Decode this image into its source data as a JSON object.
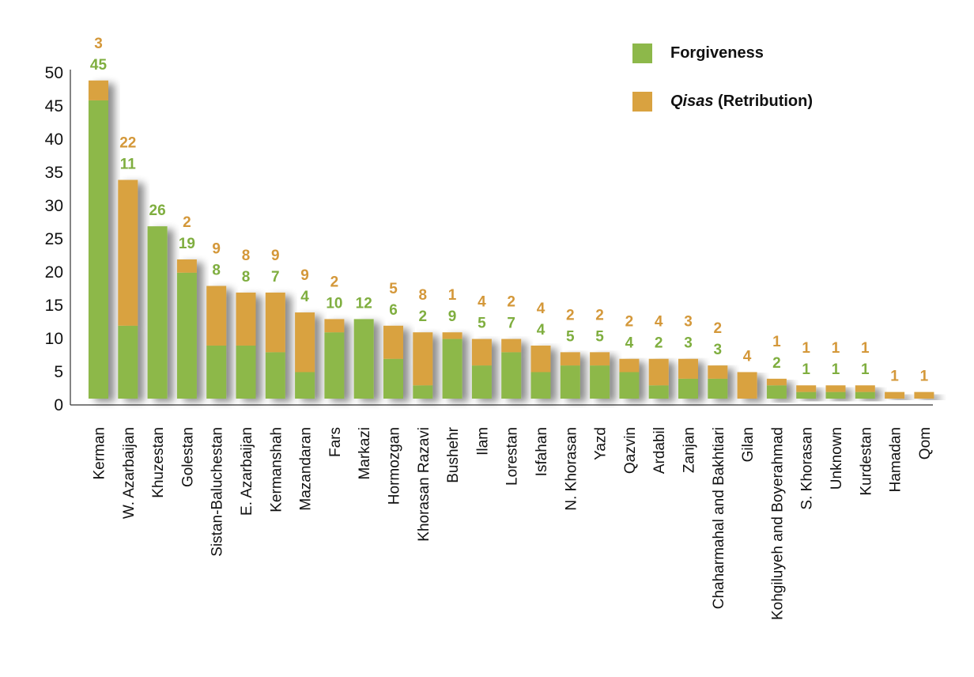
{
  "chart_data": {
    "type": "bar",
    "stacked": true,
    "categories": [
      "Kerman",
      "W. Azarbaijan",
      "Khuzestan",
      "Golestan",
      "Sistan-Baluchestan",
      "E. Azarbaijan",
      "Kermanshah",
      "Mazandaran",
      "Fars",
      "Markazi",
      "Hormozgan",
      "Khorasan Razavi",
      "Bushehr",
      "Ilam",
      "Lorestan",
      "Isfahan",
      "N. Khorasan",
      "Yazd",
      "Qazvin",
      "Ardabil",
      "Zanjan",
      "Chaharmahal and Bakhtiari",
      "Gilan",
      "Kohgiluyeh and Boyerahmad",
      "S. Khorasan",
      "Unknown",
      "Kurdestan",
      "Hamadan",
      "Qom"
    ],
    "series": [
      {
        "name": "Forgiveness",
        "color": "#8db84a",
        "values": [
          45,
          11,
          26,
          19,
          8,
          8,
          7,
          4,
          10,
          12,
          6,
          2,
          9,
          5,
          7,
          4,
          5,
          5,
          4,
          2,
          3,
          3,
          0,
          2,
          1,
          1,
          1,
          0,
          0
        ]
      },
      {
        "name": "Qisas (Retribution)",
        "color": "#d9a240",
        "values": [
          3,
          22,
          0,
          2,
          9,
          8,
          9,
          9,
          2,
          0,
          5,
          8,
          1,
          4,
          2,
          4,
          2,
          2,
          2,
          4,
          3,
          2,
          4,
          1,
          1,
          1,
          1,
          1,
          1
        ]
      }
    ],
    "ylim": [
      0,
      50
    ],
    "yticks": [
      0,
      5,
      10,
      15,
      20,
      25,
      30,
      35,
      40,
      45,
      50
    ],
    "ytick_labels": [
      "0",
      "5",
      "10",
      "15",
      "20",
      "25",
      "30",
      "35",
      "40",
      "45",
      "50"
    ],
    "grid": false,
    "legend": "top-right",
    "title": "",
    "xlabel": "",
    "ylabel": ""
  },
  "legend": {
    "forgiveness_label": "Forgiveness",
    "qisas_label_em": "Qisas",
    "qisas_label_rest": " (Retribution)"
  },
  "colors": {
    "forgiveness": "#8db84a",
    "qisas": "#d9a240",
    "forgiveness_text": "#7fae3f",
    "qisas_text": "#d4983a"
  }
}
